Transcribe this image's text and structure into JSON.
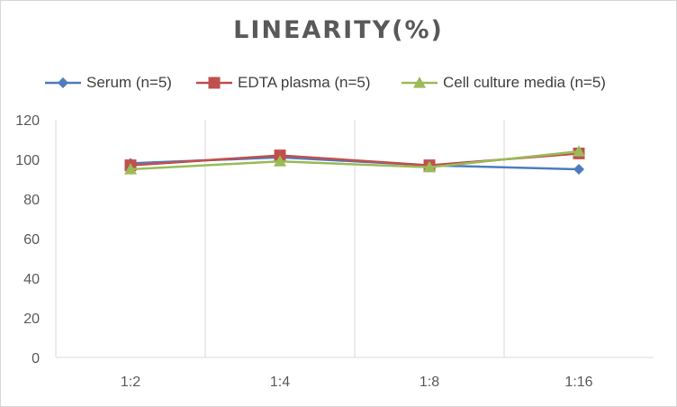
{
  "chart_data": {
    "type": "line",
    "title": "LINEARITY(%)",
    "categories": [
      "1:2",
      "1:4",
      "1:8",
      "1:16"
    ],
    "ylim": [
      0,
      120
    ],
    "yticks": [
      0,
      20,
      40,
      60,
      80,
      100,
      120
    ],
    "grid": "vertical",
    "legend_position": "top",
    "series": [
      {
        "name": "Serum (n=5)",
        "values": [
          98,
          101,
          97,
          95
        ],
        "color": "#4f7bbd",
        "marker": "diamond"
      },
      {
        "name": "EDTA plasma (n=5)",
        "values": [
          97,
          102,
          97,
          103
        ],
        "color": "#c0504d",
        "marker": "square"
      },
      {
        "name": "Cell culture media (n=5)",
        "values": [
          95,
          99,
          96,
          104
        ],
        "color": "#9bbb59",
        "marker": "triangle"
      }
    ]
  }
}
